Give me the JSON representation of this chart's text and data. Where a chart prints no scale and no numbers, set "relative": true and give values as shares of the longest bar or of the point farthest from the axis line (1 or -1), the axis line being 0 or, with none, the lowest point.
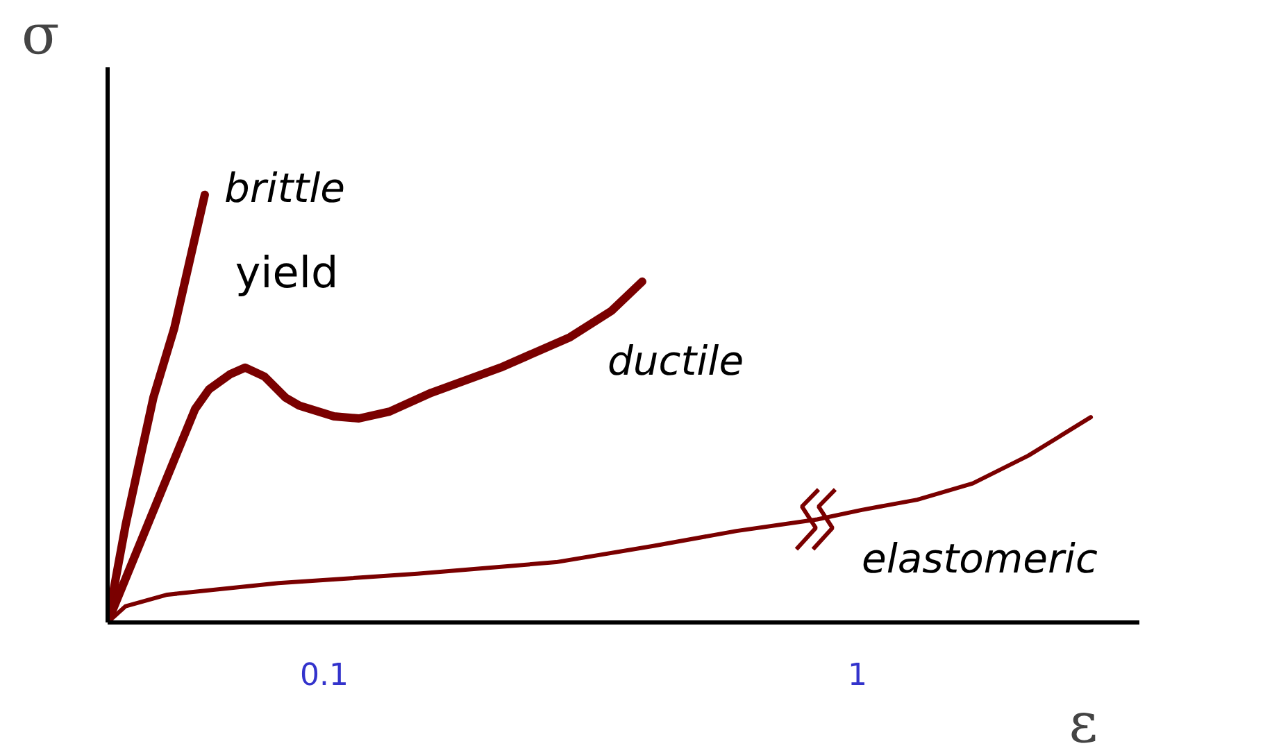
{
  "chart_data": {
    "type": "line",
    "relative": true,
    "xlabel": "ε",
    "ylabel": "σ",
    "xlim": [
      -0.2656,
      1.4758
    ],
    "xticks": [
      0.1,
      1
    ],
    "grid": false,
    "marker": "none",
    "line_style": "solid",
    "annotations": [
      {
        "text": "yield",
        "x": -0.0336,
        "y": 0.596
      }
    ],
    "series": [
      {
        "name": "brittle",
        "color": "#7a0000",
        "x": [
          -0.2656,
          -0.2352,
          -0.1883,
          -0.1531,
          -0.1016
        ],
        "values": [
          0,
          0.228,
          0.526,
          0.688,
          1.0
        ]
      },
      {
        "name": "ductile",
        "color": "#7a0000",
        "x": [
          -0.2656,
          -0.118,
          -0.0945,
          -0.0594,
          -0.0336,
          -0.0008,
          0.0344,
          0.0578,
          0.1164,
          0.1586,
          0.2102,
          0.2805,
          0.3977,
          0.5148,
          0.5852,
          0.6367
        ],
        "values": [
          0,
          0.499,
          0.545,
          0.58,
          0.596,
          0.575,
          0.526,
          0.507,
          0.482,
          0.477,
          0.493,
          0.537,
          0.596,
          0.667,
          0.729,
          0.797
        ]
      },
      {
        "name": "elastomeric",
        "color": "#7a0000",
        "x": [
          -0.2656,
          -0.2352,
          -0.1648,
          0.0227,
          0.257,
          0.4914,
          0.6555,
          0.7961,
          0.932,
          1.007,
          1.1008,
          1.1945,
          1.2883,
          1.3938
        ],
        "values": [
          0,
          0.038,
          0.065,
          0.092,
          0.114,
          0.141,
          0.179,
          0.214,
          0.241,
          0.263,
          0.287,
          0.325,
          0.39,
          0.48
        ]
      }
    ]
  }
}
